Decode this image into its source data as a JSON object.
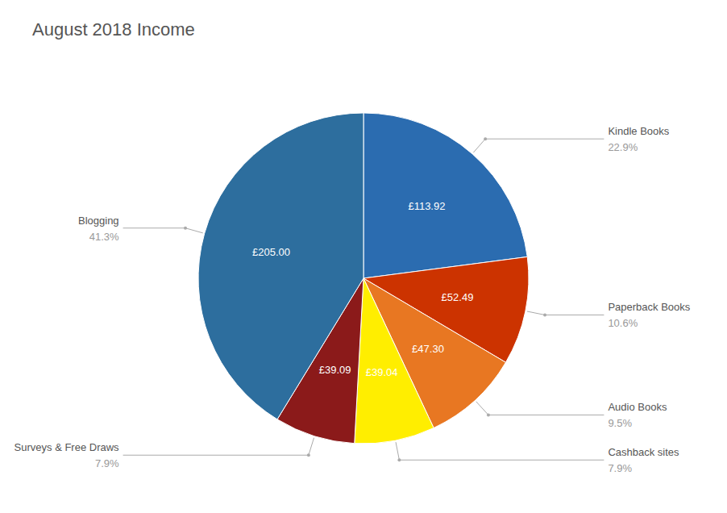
{
  "chart_data": {
    "type": "pie",
    "title": "August 2018 Income",
    "categories": [
      "Kindle Books",
      "Paperback Books",
      "Audio Books",
      "Cashback sites",
      "Surveys & Free Draws",
      "Blogging"
    ],
    "values": [
      113.92,
      52.49,
      47.3,
      39.04,
      39.09,
      205.0
    ],
    "value_labels": [
      "£113.92",
      "£52.49",
      "£47.30",
      "£39.04",
      "£39.09",
      "£205.00"
    ],
    "shares": [
      22.9,
      10.6,
      9.5,
      7.9,
      7.9,
      41.3
    ],
    "share_labels": [
      "22.9%",
      "10.6%",
      "9.5%",
      "7.9%",
      "7.9%",
      "41.3%"
    ],
    "colors": [
      "#2b6cb0",
      "#cc3300",
      "#e87722",
      "#ffee00",
      "#8b1a1a",
      "#2d6e9e"
    ],
    "data_labels": true
  }
}
